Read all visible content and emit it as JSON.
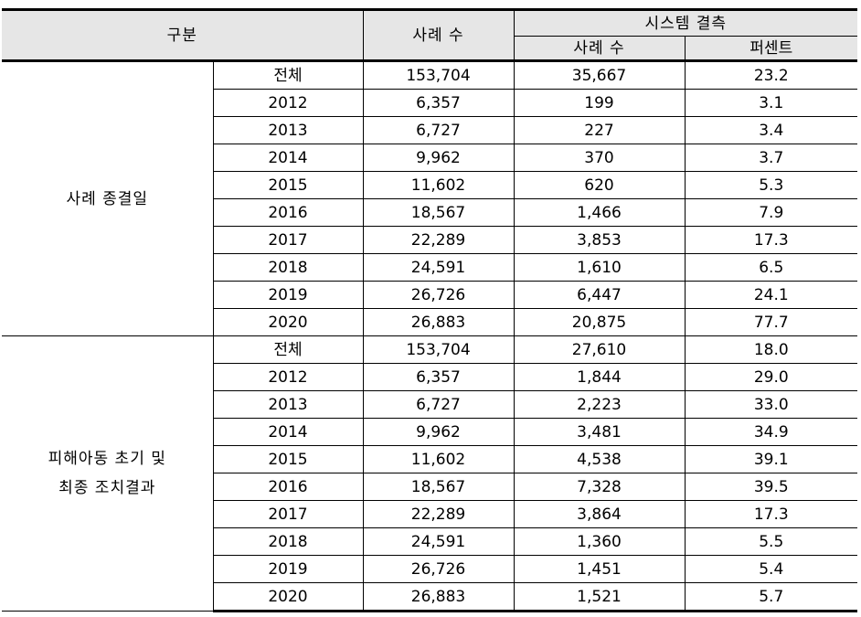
{
  "headers": {
    "category": "구분",
    "cases": "사례 수",
    "missing": "시스템 결측",
    "missing_cases": "사례 수",
    "percent": "퍼센트"
  },
  "groups": [
    {
      "label_lines": [
        "사례 종결일"
      ],
      "rows": [
        {
          "year": "전체",
          "cases": "153,704",
          "missing": "35,667",
          "pct": "23.2"
        },
        {
          "year": "2012",
          "cases": "6,357",
          "missing": "199",
          "pct": "3.1"
        },
        {
          "year": "2013",
          "cases": "6,727",
          "missing": "227",
          "pct": "3.4"
        },
        {
          "year": "2014",
          "cases": "9,962",
          "missing": "370",
          "pct": "3.7"
        },
        {
          "year": "2015",
          "cases": "11,602",
          "missing": "620",
          "pct": "5.3"
        },
        {
          "year": "2016",
          "cases": "18,567",
          "missing": "1,466",
          "pct": "7.9"
        },
        {
          "year": "2017",
          "cases": "22,289",
          "missing": "3,853",
          "pct": "17.3"
        },
        {
          "year": "2018",
          "cases": "24,591",
          "missing": "1,610",
          "pct": "6.5"
        },
        {
          "year": "2019",
          "cases": "26,726",
          "missing": "6,447",
          "pct": "24.1"
        },
        {
          "year": "2020",
          "cases": "26,883",
          "missing": "20,875",
          "pct": "77.7"
        }
      ]
    },
    {
      "label_lines": [
        "피해아동 초기 및",
        "최종 조치결과"
      ],
      "rows": [
        {
          "year": "전체",
          "cases": "153,704",
          "missing": "27,610",
          "pct": "18.0"
        },
        {
          "year": "2012",
          "cases": "6,357",
          "missing": "1,844",
          "pct": "29.0"
        },
        {
          "year": "2013",
          "cases": "6,727",
          "missing": "2,223",
          "pct": "33.0"
        },
        {
          "year": "2014",
          "cases": "9,962",
          "missing": "3,481",
          "pct": "34.9"
        },
        {
          "year": "2015",
          "cases": "11,602",
          "missing": "4,538",
          "pct": "39.1"
        },
        {
          "year": "2016",
          "cases": "18,567",
          "missing": "7,328",
          "pct": "39.5"
        },
        {
          "year": "2017",
          "cases": "22,289",
          "missing": "3,864",
          "pct": "17.3"
        },
        {
          "year": "2018",
          "cases": "24,591",
          "missing": "1,360",
          "pct": "5.5"
        },
        {
          "year": "2019",
          "cases": "26,726",
          "missing": "1,451",
          "pct": "5.4"
        },
        {
          "year": "2020",
          "cases": "26,883",
          "missing": "1,521",
          "pct": "5.7"
        }
      ]
    }
  ]
}
